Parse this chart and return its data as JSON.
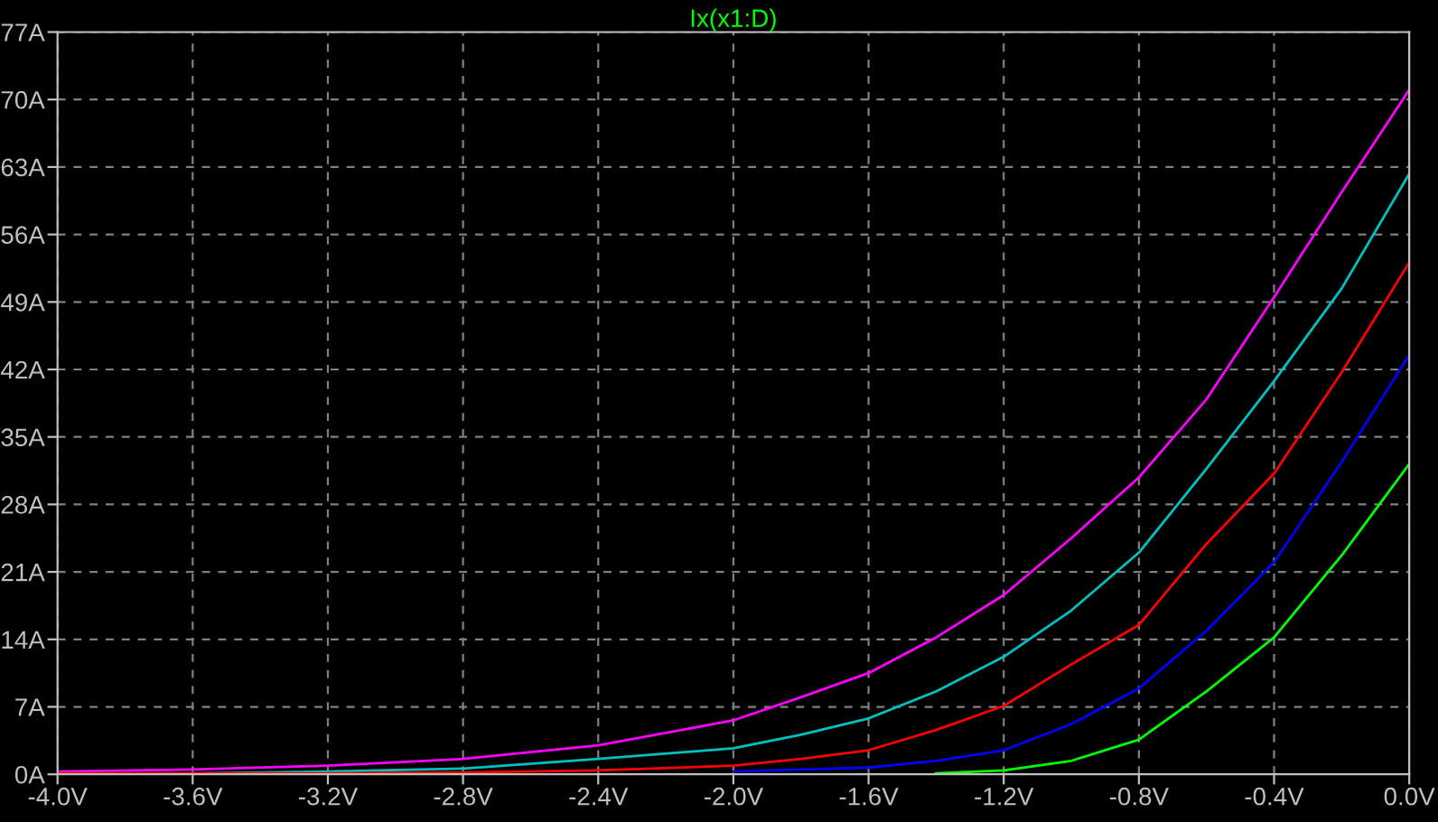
{
  "chart_data": {
    "type": "line",
    "title": "Ix(x1:D)",
    "x": [
      -4.0,
      -3.6,
      -3.2,
      -2.8,
      -2.4,
      -2.0,
      -1.8,
      -1.6,
      -1.4,
      -1.2,
      -1.0,
      -0.8,
      -0.6,
      -0.4,
      -0.2,
      0.0
    ],
    "series": [
      {
        "color": "#ff00ff",
        "values": [
          0.3,
          0.5,
          0.9,
          1.6,
          3.0,
          5.6,
          8.0,
          10.5,
          14.2,
          18.6,
          24.5,
          30.8,
          38.9,
          49.5,
          60.4,
          71.0
        ]
      },
      {
        "color": "#00c0c0",
        "values": [
          0.1,
          0.1,
          0.3,
          0.6,
          1.6,
          2.7,
          4.1,
          5.8,
          8.6,
          12.2,
          17.0,
          23.0,
          31.7,
          40.8,
          50.4,
          62.3
        ]
      },
      {
        "color": "#ff0000",
        "values": [
          0.1,
          0.1,
          0.1,
          0.2,
          0.4,
          0.9,
          1.6,
          2.5,
          4.6,
          7.1,
          11.4,
          15.5,
          23.9,
          31.2,
          41.7,
          53.1
        ]
      },
      {
        "color": "#0000ff",
        "values": [
          null,
          null,
          null,
          null,
          null,
          0.3,
          0.5,
          0.7,
          1.4,
          2.5,
          5.2,
          8.9,
          14.9,
          22.0,
          32.4,
          43.5
        ]
      },
      {
        "color": "#00ff00",
        "values": [
          null,
          null,
          null,
          null,
          null,
          null,
          null,
          null,
          0.1,
          0.4,
          1.4,
          3.6,
          8.6,
          14.2,
          22.7,
          32.2
        ]
      }
    ],
    "xlim": [
      -4.0,
      0.0
    ],
    "ylim": [
      0,
      77
    ],
    "xticks": [
      {
        "value": -4.0,
        "label": "-4.0V"
      },
      {
        "value": -3.6,
        "label": "-3.6V"
      },
      {
        "value": -3.2,
        "label": "-3.2V"
      },
      {
        "value": -2.8,
        "label": "-2.8V"
      },
      {
        "value": -2.4,
        "label": "-2.4V"
      },
      {
        "value": -2.0,
        "label": "-2.0V"
      },
      {
        "value": -1.6,
        "label": "-1.6V"
      },
      {
        "value": -1.2,
        "label": "-1.2V"
      },
      {
        "value": -0.8,
        "label": "-0.8V"
      },
      {
        "value": -0.4,
        "label": "-0.4V"
      },
      {
        "value": 0.0,
        "label": "0.0V"
      }
    ],
    "yticks": [
      {
        "value": 0,
        "label": "0A"
      },
      {
        "value": 7,
        "label": "7A"
      },
      {
        "value": 14,
        "label": "14A"
      },
      {
        "value": 21,
        "label": "21A"
      },
      {
        "value": 28,
        "label": "28A"
      },
      {
        "value": 35,
        "label": "35A"
      },
      {
        "value": 42,
        "label": "42A"
      },
      {
        "value": 49,
        "label": "49A"
      },
      {
        "value": 56,
        "label": "56A"
      },
      {
        "value": 63,
        "label": "63A"
      },
      {
        "value": 70,
        "label": "70A"
      },
      {
        "value": 77,
        "label": "77A"
      }
    ],
    "grid": true,
    "line_style": "solid",
    "marker": "none",
    "legend": false
  }
}
